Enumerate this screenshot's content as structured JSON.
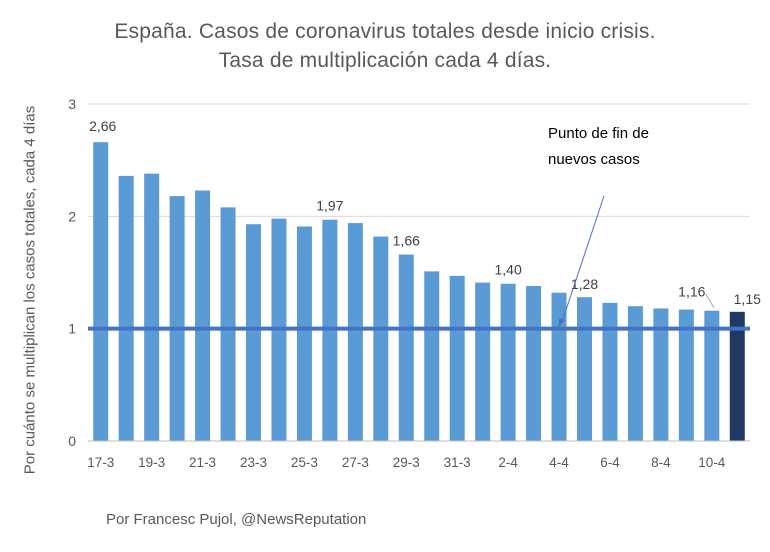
{
  "chart_data": {
    "type": "bar",
    "title": "España. Casos de coronavirus totales desde inicio crisis.",
    "subtitle": "Tasa de multiplicación cada 4 días.",
    "ylabel": "Por cuánto se multiplican los casos totales, cada 4 días",
    "xlabel": "",
    "ylim": [
      0,
      3
    ],
    "yticks": [
      "0",
      "1",
      "2",
      "3"
    ],
    "grid": true,
    "legend": "none",
    "categories": [
      "17-3",
      "18-3",
      "19-3",
      "20-3",
      "21-3",
      "22-3",
      "23-3",
      "24-3",
      "25-3",
      "26-3",
      "27-3",
      "28-3",
      "29-3",
      "30-3",
      "31-3",
      "1-4",
      "2-4",
      "3-4",
      "4-4",
      "5-4",
      "6-4",
      "7-4",
      "8-4",
      "9-4",
      "10-4",
      "11-4"
    ],
    "tick_labels": [
      "17-3",
      "",
      "19-3",
      "",
      "21-3",
      "",
      "23-3",
      "",
      "25-3",
      "",
      "27-3",
      "",
      "29-3",
      "",
      "31-3",
      "",
      "2-4",
      "",
      "4-4",
      "",
      "6-4",
      "",
      "8-4",
      "",
      "10-4",
      ""
    ],
    "values": [
      2.66,
      2.36,
      2.38,
      2.18,
      2.23,
      2.08,
      1.93,
      1.98,
      1.91,
      1.97,
      1.94,
      1.82,
      1.66,
      1.51,
      1.47,
      1.41,
      1.4,
      1.38,
      1.32,
      1.28,
      1.23,
      1.2,
      1.18,
      1.17,
      1.16,
      1.15
    ],
    "data_labels": [
      {
        "index": 0,
        "text": "2,66"
      },
      {
        "index": 9,
        "text": "1,97"
      },
      {
        "index": 12,
        "text": "1,66"
      },
      {
        "index": 16,
        "text": "1,40"
      },
      {
        "index": 19,
        "text": "1,28"
      },
      {
        "index": 24,
        "text": "1,16"
      },
      {
        "index": 25,
        "text": "1,15"
      }
    ],
    "highlight_index": 25,
    "reference_line": 1,
    "annotation": "Punto de fin de\nnuevos casos",
    "colors": {
      "bar": "#5b9bd5",
      "highlight": "#1f3864",
      "reference_line": "#4472c4",
      "grid": "#d9d9d9",
      "text": "#595959"
    }
  },
  "footer": "Por Francesc Pujol, @NewsReputation"
}
